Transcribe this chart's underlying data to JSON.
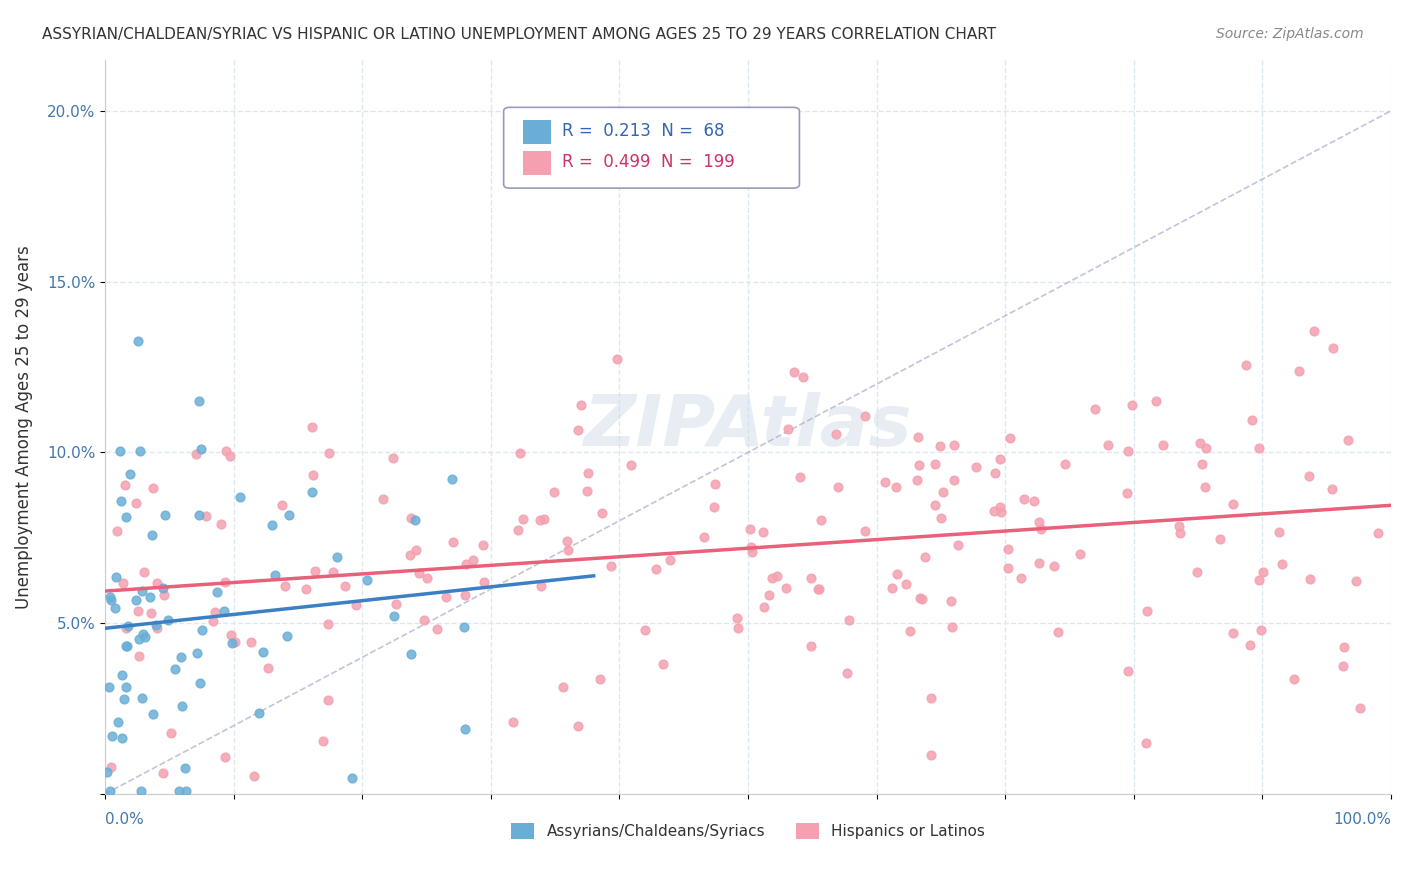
{
  "title": "ASSYRIAN/CHALDEAN/SYRIAC VS HISPANIC OR LATINO UNEMPLOYMENT AMONG AGES 25 TO 29 YEARS CORRELATION CHART",
  "source": "Source: ZipAtlas.com",
  "ylabel": "Unemployment Among Ages 25 to 29 years",
  "xlim": [
    0.0,
    1.0
  ],
  "ylim": [
    0.0,
    0.215
  ],
  "legend_R1": "0.213",
  "legend_N1": "68",
  "legend_R2": "0.499",
  "legend_N2": "199",
  "legend_label1": "Assyrians/Chaldeans/Syriacs",
  "legend_label2": "Hispanics or Latinos",
  "blue_color": "#6aaed6",
  "pink_color": "#f4a0b0",
  "blue_line_color": "#3b7fc4",
  "pink_line_color": "#e8607a",
  "watermark": "ZIPAtlas",
  "background_color": "#ffffff",
  "grid_color": "#dce8f0"
}
